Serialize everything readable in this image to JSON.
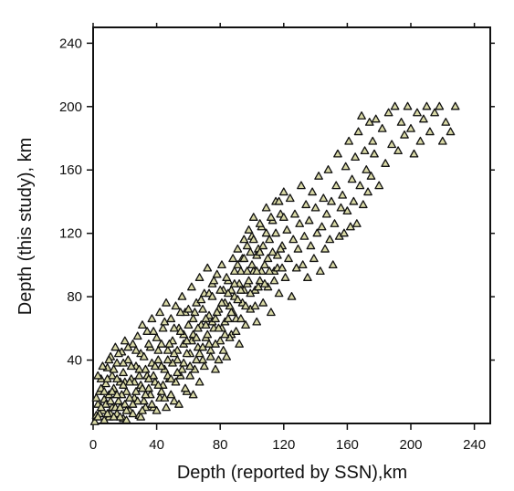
{
  "chart_data": {
    "type": "scatter",
    "xlabel": "Depth (reported by SSN),km",
    "ylabel": "Depth (this study), km",
    "xlim": [
      0,
      250
    ],
    "ylim": [
      0,
      250
    ],
    "x_ticks": [
      "0",
      "40",
      "80",
      "120",
      "160",
      "200",
      "240"
    ],
    "y_ticks": [
      "40",
      "80",
      "120",
      "160",
      "200",
      "240"
    ],
    "grid": false,
    "marker": "triangle",
    "marker_fill": "#d9d9a6",
    "marker_stroke": "#111111",
    "points": [
      [
        2,
        5
      ],
      [
        3,
        12
      ],
      [
        4,
        20
      ],
      [
        5,
        28
      ],
      [
        6,
        8
      ],
      [
        7,
        15
      ],
      [
        8,
        25
      ],
      [
        9,
        35
      ],
      [
        10,
        4
      ],
      [
        10,
        18
      ],
      [
        11,
        42
      ],
      [
        12,
        10
      ],
      [
        12,
        30
      ],
      [
        13,
        22
      ],
      [
        14,
        48
      ],
      [
        15,
        6
      ],
      [
        15,
        38
      ],
      [
        16,
        14
      ],
      [
        17,
        26
      ],
      [
        18,
        45
      ],
      [
        19,
        3
      ],
      [
        19,
        32
      ],
      [
        20,
        12
      ],
      [
        20,
        52
      ],
      [
        21,
        20
      ],
      [
        22,
        40
      ],
      [
        23,
        8
      ],
      [
        24,
        28
      ],
      [
        25,
        50
      ],
      [
        26,
        16
      ],
      [
        27,
        36
      ],
      [
        28,
        55
      ],
      [
        29,
        5
      ],
      [
        30,
        24
      ],
      [
        30,
        44
      ],
      [
        31,
        62
      ],
      [
        32,
        14
      ],
      [
        33,
        34
      ],
      [
        34,
        58
      ],
      [
        35,
        22
      ],
      [
        36,
        48
      ],
      [
        37,
        66
      ],
      [
        38,
        30
      ],
      [
        38,
        10
      ],
      [
        40,
        54
      ],
      [
        41,
        40
      ],
      [
        42,
        70
      ],
      [
        43,
        20
      ],
      [
        44,
        60
      ],
      [
        45,
        34
      ],
      [
        46,
        76
      ],
      [
        47,
        46
      ],
      [
        48,
        28
      ],
      [
        49,
        66
      ],
      [
        50,
        52
      ],
      [
        51,
        14
      ],
      [
        52,
        74
      ],
      [
        53,
        40
      ],
      [
        54,
        60
      ],
      [
        55,
        30
      ],
      [
        56,
        80
      ],
      [
        57,
        50
      ],
      [
        58,
        70
      ],
      [
        59,
        20
      ],
      [
        60,
        62
      ],
      [
        61,
        44
      ],
      [
        62,
        86
      ],
      [
        63,
        56
      ],
      [
        64,
        34
      ],
      [
        65,
        76
      ],
      [
        66,
        48
      ],
      [
        67,
        92
      ],
      [
        68,
        62
      ],
      [
        69,
        40
      ],
      [
        70,
        82
      ],
      [
        71,
        54
      ],
      [
        72,
        98
      ],
      [
        73,
        68
      ],
      [
        74,
        46
      ],
      [
        75,
        88
      ],
      [
        76,
        60
      ],
      [
        77,
        34
      ],
      [
        78,
        94
      ],
      [
        79,
        72
      ],
      [
        80,
        52
      ],
      [
        81,
        100
      ],
      [
        82,
        84
      ],
      [
        83,
        64
      ],
      [
        84,
        42
      ],
      [
        85,
        90
      ],
      [
        86,
        74
      ],
      [
        87,
        56
      ],
      [
        88,
        104
      ],
      [
        89,
        80
      ],
      [
        90,
        66
      ],
      [
        91,
        110
      ],
      [
        92,
        50
      ],
      [
        93,
        96
      ],
      [
        94,
        76
      ],
      [
        95,
        116
      ],
      [
        96,
        62
      ],
      [
        97,
        88
      ],
      [
        98,
        122
      ],
      [
        99,
        72
      ],
      [
        100,
        100
      ],
      [
        101,
        130
      ],
      [
        102,
        84
      ],
      [
        103,
        64
      ],
      [
        104,
        110
      ],
      [
        105,
        90
      ],
      [
        106,
        124
      ],
      [
        107,
        76
      ],
      [
        108,
        100
      ],
      [
        109,
        136
      ],
      [
        110,
        86
      ],
      [
        111,
        116
      ],
      [
        112,
        70
      ],
      [
        113,
        128
      ],
      [
        114,
        96
      ],
      [
        115,
        140
      ],
      [
        116,
        106
      ],
      [
        117,
        82
      ],
      [
        118,
        132
      ],
      [
        119,
        112
      ],
      [
        120,
        146
      ],
      [
        121,
        92
      ],
      [
        122,
        122
      ],
      [
        123,
        104
      ],
      [
        124,
        142
      ],
      [
        125,
        80
      ],
      [
        126,
        116
      ],
      [
        127,
        132
      ],
      [
        128,
        98
      ],
      [
        129,
        110
      ],
      [
        130,
        126
      ],
      [
        131,
        150
      ],
      [
        132,
        100
      ],
      [
        133,
        118
      ],
      [
        134,
        138
      ],
      [
        135,
        92
      ],
      [
        136,
        128
      ],
      [
        137,
        112
      ],
      [
        138,
        146
      ],
      [
        139,
        104
      ],
      [
        140,
        136
      ],
      [
        141,
        120
      ],
      [
        142,
        156
      ],
      [
        143,
        96
      ],
      [
        144,
        124
      ],
      [
        145,
        142
      ],
      [
        146,
        110
      ],
      [
        147,
        132
      ],
      [
        148,
        160
      ],
      [
        149,
        116
      ],
      [
        150,
        140
      ],
      [
        151,
        100
      ],
      [
        152,
        126
      ],
      [
        153,
        150
      ],
      [
        154,
        170
      ],
      [
        155,
        118
      ],
      [
        156,
        136
      ],
      [
        157,
        144
      ],
      [
        158,
        120
      ],
      [
        159,
        162
      ],
      [
        160,
        134
      ],
      [
        161,
        178
      ],
      [
        162,
        124
      ],
      [
        163,
        154
      ],
      [
        164,
        140
      ],
      [
        165,
        168
      ],
      [
        166,
        126
      ],
      [
        167,
        184
      ],
      [
        168,
        150
      ],
      [
        169,
        194
      ],
      [
        170,
        138
      ],
      [
        171,
        172
      ],
      [
        172,
        160
      ],
      [
        173,
        146
      ],
      [
        174,
        190
      ],
      [
        175,
        156
      ],
      [
        176,
        178
      ],
      [
        177,
        170
      ],
      [
        178,
        192
      ],
      [
        180,
        150
      ],
      [
        182,
        186
      ],
      [
        184,
        164
      ],
      [
        186,
        196
      ],
      [
        188,
        176
      ],
      [
        190,
        200
      ],
      [
        192,
        172
      ],
      [
        194,
        190
      ],
      [
        196,
        182
      ],
      [
        198,
        200
      ],
      [
        200,
        186
      ],
      [
        202,
        170
      ],
      [
        204,
        196
      ],
      [
        206,
        178
      ],
      [
        208,
        192
      ],
      [
        210,
        200
      ],
      [
        212,
        184
      ],
      [
        215,
        196
      ],
      [
        218,
        200
      ],
      [
        220,
        178
      ],
      [
        222,
        190
      ],
      [
        225,
        184
      ],
      [
        228,
        200
      ],
      [
        1,
        1
      ],
      [
        2,
        16
      ],
      [
        3,
        30
      ],
      [
        4,
        6
      ],
      [
        5,
        22
      ],
      [
        6,
        36
      ],
      [
        7,
        2
      ],
      [
        8,
        12
      ],
      [
        9,
        28
      ],
      [
        10,
        40
      ],
      [
        11,
        6
      ],
      [
        12,
        20
      ],
      [
        13,
        34
      ],
      [
        14,
        10
      ],
      [
        15,
        28
      ],
      [
        16,
        44
      ],
      [
        17,
        4
      ],
      [
        18,
        18
      ],
      [
        19,
        38
      ],
      [
        20,
        26
      ],
      [
        21,
        8
      ],
      [
        22,
        48
      ],
      [
        23,
        16
      ],
      [
        24,
        36
      ],
      [
        25,
        6
      ],
      [
        26,
        26
      ],
      [
        27,
        46
      ],
      [
        28,
        14
      ],
      [
        29,
        34
      ],
      [
        30,
        4
      ],
      [
        31,
        22
      ],
      [
        32,
        42
      ],
      [
        33,
        10
      ],
      [
        34,
        30
      ],
      [
        35,
        50
      ],
      [
        36,
        18
      ],
      [
        37,
        38
      ],
      [
        38,
        58
      ],
      [
        39,
        26
      ],
      [
        40,
        8
      ],
      [
        41,
        46
      ],
      [
        42,
        16
      ],
      [
        43,
        36
      ],
      [
        44,
        24
      ],
      [
        45,
        64
      ],
      [
        46,
        10
      ],
      [
        47,
        30
      ],
      [
        48,
        50
      ],
      [
        49,
        18
      ],
      [
        50,
        38
      ],
      [
        51,
        60
      ],
      [
        52,
        26
      ],
      [
        53,
        46
      ],
      [
        54,
        12
      ],
      [
        55,
        70
      ],
      [
        56,
        34
      ],
      [
        57,
        56
      ],
      [
        58,
        22
      ],
      [
        59,
        44
      ],
      [
        60,
        72
      ],
      [
        61,
        30
      ],
      [
        62,
        52
      ],
      [
        63,
        18
      ],
      [
        64,
        70
      ],
      [
        65,
        40
      ],
      [
        66,
        60
      ],
      [
        67,
        26
      ],
      [
        68,
        78
      ],
      [
        69,
        48
      ],
      [
        70,
        36
      ],
      [
        71,
        66
      ],
      [
        72,
        56
      ],
      [
        73,
        82
      ],
      [
        74,
        42
      ],
      [
        75,
        64
      ],
      [
        76,
        90
      ],
      [
        77,
        50
      ],
      [
        78,
        70
      ],
      [
        79,
        40
      ],
      [
        80,
        84
      ],
      [
        81,
        60
      ],
      [
        82,
        46
      ],
      [
        83,
        76
      ],
      [
        84,
        92
      ],
      [
        85,
        66
      ],
      [
        86,
        54
      ],
      [
        87,
        84
      ],
      [
        88,
        70
      ],
      [
        89,
        96
      ],
      [
        90,
        58
      ],
      [
        91,
        78
      ],
      [
        92,
        88
      ],
      [
        93,
        66
      ],
      [
        94,
        104
      ],
      [
        95,
        84
      ],
      [
        96,
        74
      ],
      [
        97,
        112
      ],
      [
        98,
        90
      ],
      [
        99,
        82
      ],
      [
        100,
        118
      ],
      [
        101,
        96
      ],
      [
        102,
        74
      ],
      [
        103,
        106
      ],
      [
        104,
        86
      ],
      [
        105,
        126
      ],
      [
        106,
        96
      ],
      [
        107,
        112
      ],
      [
        108,
        88
      ],
      [
        109,
        120
      ],
      [
        110,
        104
      ],
      [
        111,
        96
      ],
      [
        112,
        130
      ],
      [
        113,
        108
      ],
      [
        114,
        90
      ],
      [
        115,
        120
      ],
      [
        116,
        98
      ],
      [
        117,
        140
      ],
      [
        118,
        110
      ],
      [
        119,
        98
      ],
      [
        120,
        130
      ],
      [
        3,
        4
      ],
      [
        5,
        10
      ],
      [
        7,
        20
      ],
      [
        9,
        6
      ],
      [
        11,
        14
      ],
      [
        13,
        4
      ],
      [
        15,
        18
      ],
      [
        17,
        10
      ],
      [
        19,
        24
      ],
      [
        21,
        2
      ],
      [
        23,
        26
      ],
      [
        25,
        12
      ],
      [
        27,
        20
      ],
      [
        29,
        30
      ],
      [
        31,
        8
      ],
      [
        33,
        18
      ],
      [
        35,
        28
      ],
      [
        37,
        12
      ],
      [
        39,
        36
      ],
      [
        41,
        24
      ],
      [
        43,
        50
      ],
      [
        45,
        16
      ],
      [
        47,
        40
      ],
      [
        49,
        28
      ],
      [
        51,
        44
      ],
      [
        53,
        32
      ],
      [
        55,
        58
      ],
      [
        57,
        38
      ],
      [
        59,
        52
      ],
      [
        61,
        36
      ],
      [
        63,
        66
      ],
      [
        65,
        54
      ],
      [
        67,
        44
      ],
      [
        69,
        72
      ],
      [
        71,
        62
      ],
      [
        73,
        50
      ],
      [
        75,
        80
      ],
      [
        77,
        66
      ],
      [
        79,
        60
      ],
      [
        81,
        76
      ],
      [
        83,
        56
      ],
      [
        85,
        82
      ],
      [
        87,
        70
      ],
      [
        89,
        88
      ],
      [
        91,
        100
      ],
      [
        93,
        84
      ],
      [
        95,
        104
      ],
      [
        97,
        96
      ],
      [
        99,
        108
      ],
      [
        101,
        116
      ],
      [
        103,
        96
      ],
      [
        105,
        108
      ]
    ]
  }
}
